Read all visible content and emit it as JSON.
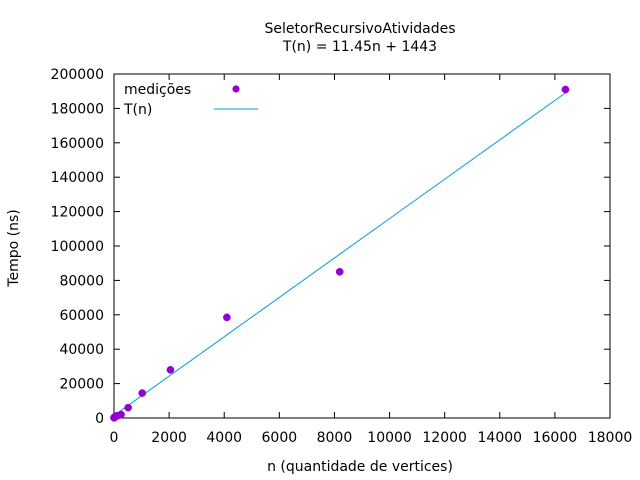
{
  "chart_data": {
    "type": "scatter",
    "title": "SeletorRecursivoAtividades",
    "subtitle": "T(n) = 11.45n + 1443",
    "xlabel": "n (quantidade de vertices)",
    "ylabel": "Tempo (ns)",
    "xlim": [
      0,
      18000
    ],
    "ylim": [
      0,
      200000
    ],
    "x_ticks": [
      0,
      2000,
      4000,
      6000,
      8000,
      10000,
      12000,
      14000,
      16000,
      18000
    ],
    "y_ticks": [
      0,
      20000,
      40000,
      60000,
      80000,
      100000,
      120000,
      140000,
      160000,
      180000,
      200000
    ],
    "grid": false,
    "legend_position": "top-left",
    "series": [
      {
        "name": "medições",
        "kind": "points",
        "color": "#9400d3",
        "points": [
          {
            "x": 2,
            "y": 150
          },
          {
            "x": 4,
            "y": 200
          },
          {
            "x": 8,
            "y": 250
          },
          {
            "x": 16,
            "y": 400
          },
          {
            "x": 32,
            "y": 700
          },
          {
            "x": 64,
            "y": 1100
          },
          {
            "x": 128,
            "y": 1300
          },
          {
            "x": 256,
            "y": 2000
          },
          {
            "x": 512,
            "y": 6000
          },
          {
            "x": 1024,
            "y": 14500
          },
          {
            "x": 2048,
            "y": 28000
          },
          {
            "x": 4096,
            "y": 58500
          },
          {
            "x": 8192,
            "y": 85000
          },
          {
            "x": 16384,
            "y": 191000
          }
        ]
      },
      {
        "name": "T(n)",
        "kind": "line",
        "color": "#009ed8",
        "slope": 11.45,
        "intercept": 1443,
        "x_range": [
          0,
          16384
        ]
      }
    ]
  }
}
